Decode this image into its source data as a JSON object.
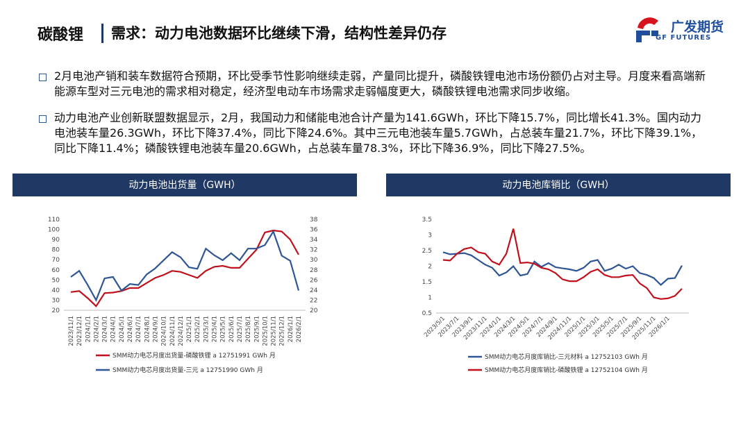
{
  "header": {
    "section": "碳酸锂",
    "title": "需求：动力电池数据环比继续下滑，结构性差异仍存",
    "logo_cn": "广发期货",
    "logo_en": "GF FUTURES"
  },
  "bullets": [
    "2月电池产销和装车数据符合预期，环比受季节性影响继续走弱，产量同比提升，磷酸铁锂电池市场份额仍占对主导。月度来看高端新能源车型对三元电池的需求相对稳定，经济型电动车市场需求走弱幅度更大，磷酸铁锂电池需求同步收缩。",
    "动力电池产业创新联盟数据显示，2月，我国动力和储能电池合计产量为141.6GWh，环比下降15.7%，同比增长41.3%。国内动力电池装车量26.3GWh，环比下降37.4%，同比下降24.6%。其中三元电池装车量5.7GWh，占总装车量21.7%，环比下降39.1%，同比下降11.4%；磷酸铁锂电池装车量20.6GWh，占总装车量78.3%，环比下降36.9%，同比下降27.5%。"
  ],
  "chart_data": [
    {
      "type": "line",
      "title": "动力电池出货量（GWH）",
      "categories": [
        "2023/11/1",
        "2023/12/1",
        "2024/1/1",
        "2024/2/1",
        "2024/3/1",
        "2024/4/1",
        "2024/5/1",
        "2024/6/1",
        "2024/7/1",
        "2024/8/1",
        "2024/9/1",
        "2024/10/1",
        "2024/11/1",
        "2024/12/1",
        "2025/1/1",
        "2025/2/1",
        "2025/3/1",
        "2025/4/1",
        "2025/5/1",
        "2025/6/1",
        "2025/7/1",
        "2025/8/1",
        "2025/9/1",
        "2025/10/1",
        "2025/11/1",
        "2025/12/1",
        "2026/1/1",
        "2026/2/1"
      ],
      "series": [
        {
          "name": "SMM动力电芯月度出货量-磷酸铁锂 a 12751991 GWh 月",
          "color": "#c0101c",
          "values": [
            38,
            39,
            32,
            24,
            37,
            37.5,
            39,
            42,
            42,
            47,
            52,
            55,
            59,
            58,
            55,
            52,
            59,
            63,
            64,
            62,
            62,
            71,
            80,
            97,
            99,
            98,
            90,
            75
          ]
        },
        {
          "name": "SMM动力电芯月度出货量-三元 a 12751990 GWh 月",
          "color": "#2e5594",
          "axis": "y2",
          "values": [
            26.6,
            27.8,
            25.0,
            22.0,
            26.3,
            26.6,
            23.9,
            25.2,
            25.0,
            27.1,
            28.3,
            29.9,
            31.5,
            30.5,
            28.5,
            28.2,
            32.2,
            30.9,
            29.9,
            31.3,
            29.9,
            32.2,
            32.2,
            32.9,
            35.6,
            30.8,
            29.8,
            23.9
          ]
        }
      ],
      "ylim": [
        20,
        110
      ],
      "yticks": [
        20,
        30,
        40,
        50,
        60,
        70,
        80,
        90,
        100,
        110
      ],
      "y2lim": [
        20,
        38
      ],
      "y2ticks": [
        20,
        22,
        24,
        26,
        28,
        30,
        32,
        34,
        36,
        38
      ],
      "grid": false,
      "legend": "bottom"
    },
    {
      "type": "line",
      "title": "动力电池库销比（GWH）",
      "categories": [
        "2023/5/1",
        null,
        "2023/7/1",
        null,
        "2023/9/1",
        null,
        "2023/11/1",
        null,
        "2024/1/1",
        null,
        "2024/3/1",
        null,
        "2024/5/1",
        null,
        "2024/7/1",
        null,
        "2024/9/1",
        null,
        "2024/11/1",
        null,
        "2025/1/1",
        null,
        "2025/3/1",
        null,
        "2025/5/1",
        null,
        "2025/7/1",
        null,
        "2025/9/1",
        null,
        "2025/11/1",
        null,
        "2026/1/1",
        null,
        null
      ],
      "series": [
        {
          "name": "SMM动力电芯月度库销比-三元材料 a 12752103 GWh 月",
          "color": "#2e5594",
          "values": [
            2.45,
            2.38,
            2.4,
            2.42,
            2.35,
            2.2,
            2.05,
            1.95,
            1.7,
            1.8,
            2.0,
            1.7,
            1.75,
            2.15,
            1.98,
            2.1,
            1.97,
            1.93,
            1.9,
            1.85,
            1.95,
            2.15,
            2.2,
            1.85,
            1.92,
            2.05,
            1.92,
            2.0,
            1.78,
            1.72,
            1.62,
            1.4,
            1.6,
            1.62,
            2.02
          ]
        },
        {
          "name": "SMM动力电芯月度库销比-磷酸铁锂 a 12752104 GWh 月",
          "color": "#c0101c",
          "values": [
            2.2,
            2.18,
            2.4,
            2.55,
            2.6,
            2.45,
            2.4,
            2.15,
            2.05,
            2.4,
            3.2,
            2.1,
            2.12,
            2.08,
            1.95,
            1.9,
            1.78,
            1.58,
            1.52,
            1.52,
            1.65,
            1.82,
            1.9,
            1.72,
            1.65,
            1.65,
            1.7,
            1.72,
            1.45,
            1.3,
            1.0,
            0.95,
            0.97,
            1.05,
            1.28
          ]
        }
      ],
      "ylim": [
        0.5,
        3.5
      ],
      "yticks": [
        0.5,
        1,
        1.5,
        2,
        2.5,
        3,
        3.5
      ],
      "grid": false,
      "legend": "bottom"
    }
  ]
}
